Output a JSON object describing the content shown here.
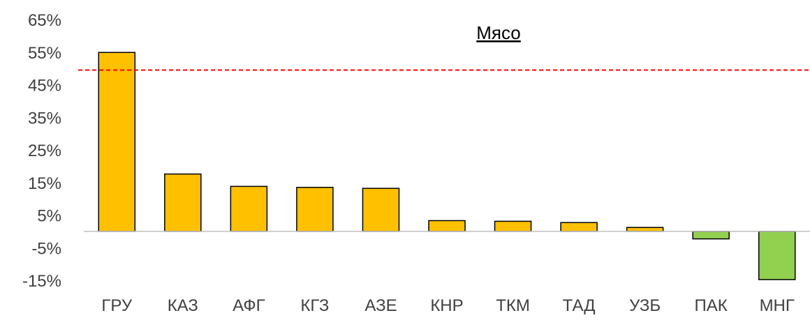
{
  "chart_data": {
    "type": "bar",
    "title": "Мясо",
    "categories": [
      "ГРУ",
      "КАЗ",
      "АФГ",
      "КГЗ",
      "АЗЕ",
      "КНР",
      "ТКМ",
      "ТАД",
      "УЗБ",
      "ПАК",
      "МНГ"
    ],
    "values": [
      54.9,
      17.6,
      13.8,
      13.5,
      13.2,
      3.3,
      3.1,
      2.7,
      1.2,
      -2.3,
      -14.8
    ],
    "ylim": [
      -15,
      65
    ],
    "yticks": [
      65,
      55,
      45,
      35,
      25,
      15,
      5,
      -5,
      -15
    ],
    "ytick_labels": [
      "65%",
      "55%",
      "45%",
      "35%",
      "25%",
      "15%",
      "5%",
      "-5%",
      "-15%"
    ],
    "reference_line": 49.5,
    "colors": {
      "positive": "#FFC000",
      "negative": "#92D050",
      "bar_outline": "#000000",
      "reference_line": "#FF0000",
      "baseline": "#BFBFBF"
    }
  }
}
